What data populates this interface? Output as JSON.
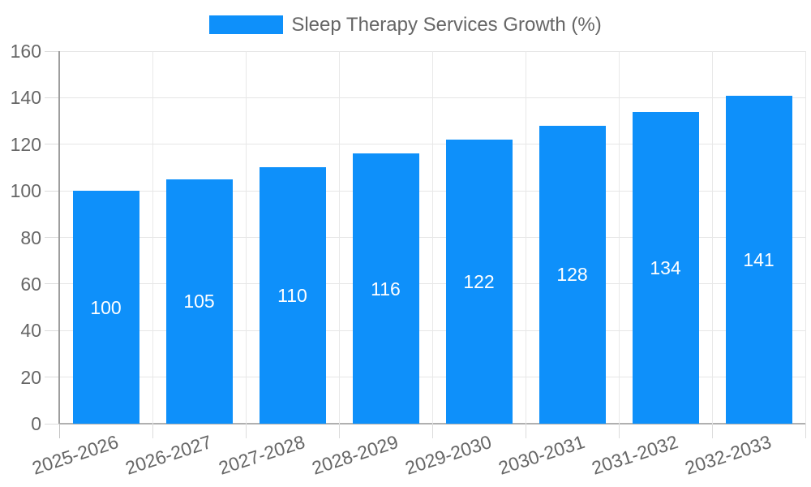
{
  "legend": {
    "label": "Sleep Therapy Services Growth (%)"
  },
  "chart_data": {
    "type": "bar",
    "title": "Sleep Therapy Services Growth (%)",
    "categories": [
      "2025-2026",
      "2026-2027",
      "2027-2028",
      "2028-2029",
      "2029-2030",
      "2030-2031",
      "2031-2032",
      "2032-2033"
    ],
    "values": [
      100,
      105,
      110,
      116,
      122,
      128,
      134,
      141
    ],
    "xlabel": "",
    "ylabel": "",
    "ylim": [
      0,
      160
    ],
    "yticks": [
      0,
      20,
      40,
      60,
      80,
      100,
      120,
      140,
      160
    ],
    "grid": true,
    "legend_position": "top-center",
    "value_labels": "centered-inside-bars",
    "colors": {
      "bar": "#0e90fa",
      "value_label": "#ffffff",
      "axis_text": "#666666",
      "grid": "#e6e6e6",
      "tick": "#dcdcdc",
      "axis_line_left": "#9e9e9e",
      "axis_line_bottom": "#b0b0b0",
      "background": "#ffffff"
    }
  }
}
